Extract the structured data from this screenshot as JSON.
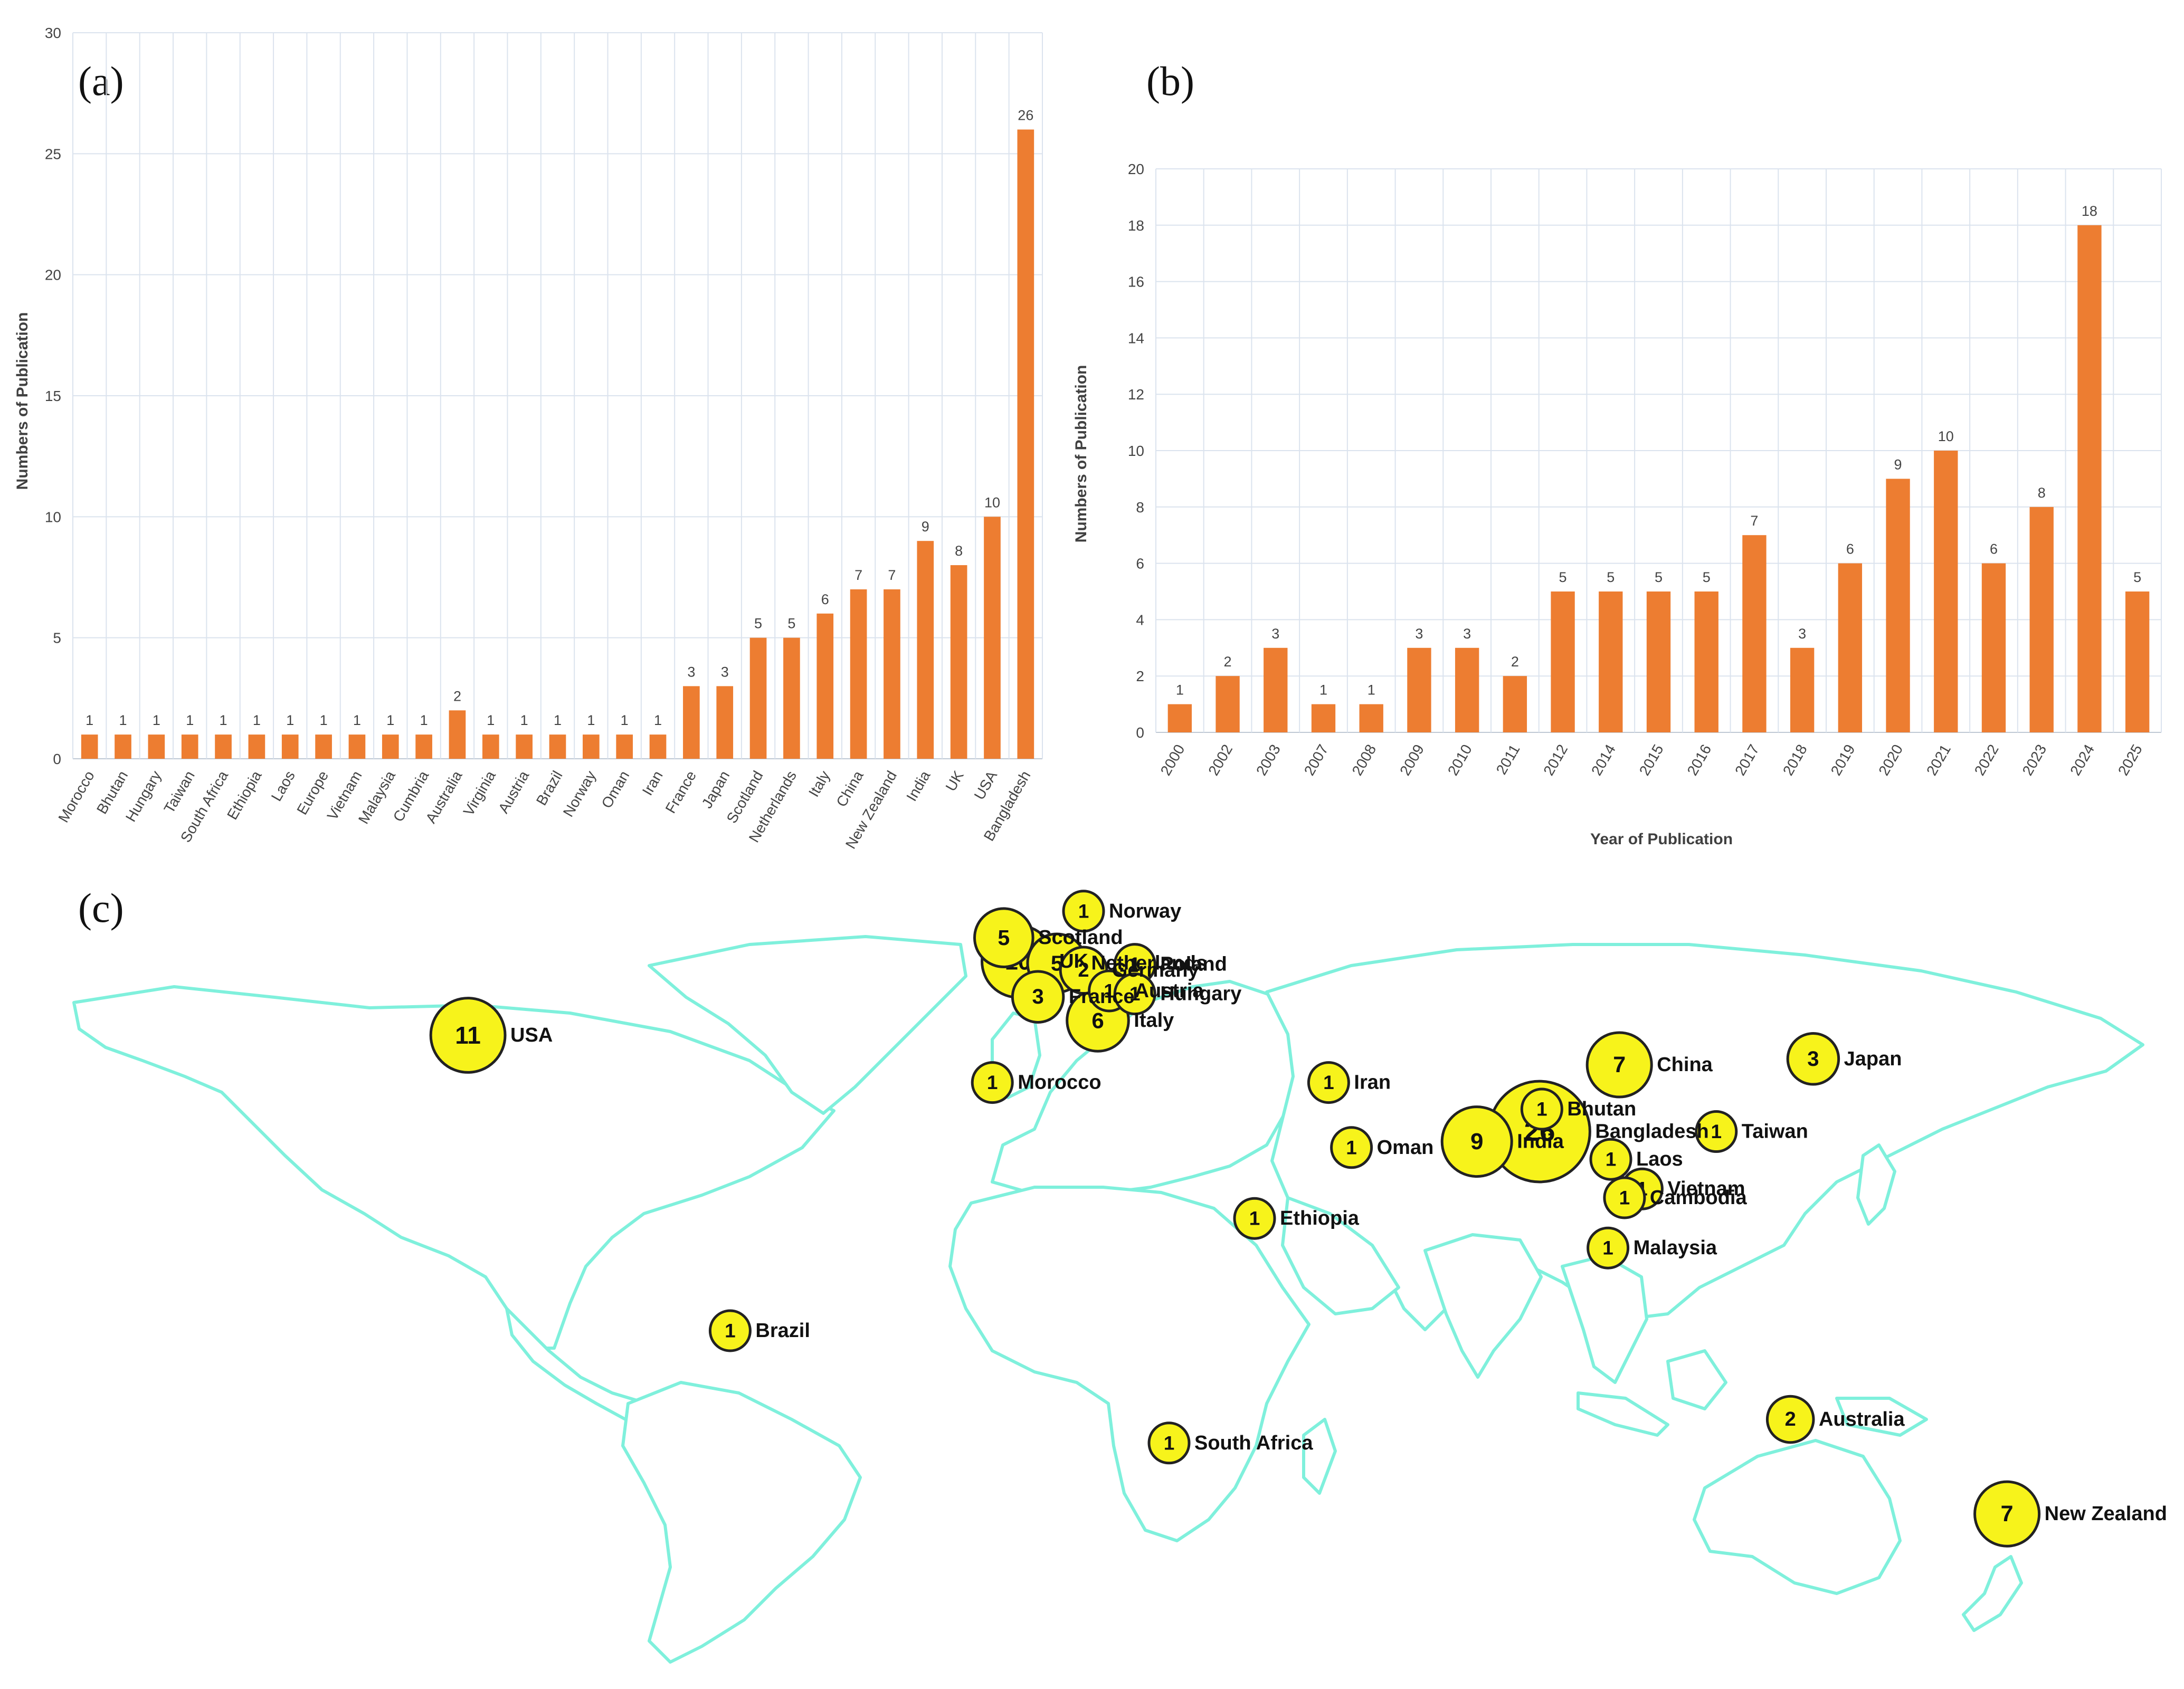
{
  "chart_data": [
    {
      "panel": "(a)",
      "type": "bar",
      "ylabel": "Numbers of Publication",
      "xlabel": "",
      "ylim": [
        0,
        30
      ],
      "yticks": [
        0,
        5,
        10,
        15,
        20,
        25,
        30
      ],
      "grid": true,
      "bar_color": "#ed7d31",
      "categories": [
        "Morocco",
        "Bhutan",
        "Hungary",
        "Taiwan",
        "South Africa",
        "Ethiopia",
        "Laos",
        "Europe",
        "Vietnam",
        "Malaysia",
        "Cumbria",
        "Australia",
        "Virginia",
        "Austria",
        "Brazil",
        "Norway",
        "Oman",
        "Iran",
        "France",
        "Japan",
        "Scotland",
        "Netherlands",
        "Italy",
        "China",
        "New Zealand",
        "India",
        "UK",
        "USA",
        "Bangladesh"
      ],
      "values": [
        1,
        1,
        1,
        1,
        1,
        1,
        1,
        1,
        1,
        1,
        1,
        2,
        1,
        1,
        1,
        1,
        1,
        1,
        3,
        3,
        5,
        5,
        6,
        7,
        7,
        9,
        8,
        10,
        26
      ]
    },
    {
      "panel": "(b)",
      "type": "bar",
      "ylabel": "Numbers of Publication",
      "xlabel": "Year of Publication",
      "ylim": [
        0,
        20
      ],
      "yticks": [
        0,
        2,
        4,
        6,
        8,
        10,
        12,
        14,
        16,
        18,
        20
      ],
      "grid": true,
      "bar_color": "#ed7d31",
      "categories": [
        "2000",
        "2002",
        "2003",
        "2007",
        "2008",
        "2009",
        "2010",
        "2011",
        "2012",
        "2014",
        "2015",
        "2016",
        "2017",
        "2018",
        "2019",
        "2020",
        "2021",
        "2022",
        "2023",
        "2024",
        "2025"
      ],
      "values": [
        1,
        2,
        3,
        1,
        1,
        3,
        3,
        2,
        5,
        5,
        5,
        5,
        7,
        3,
        6,
        9,
        10,
        6,
        8,
        18,
        5
      ]
    },
    {
      "panel": "(c)",
      "type": "bubble-map",
      "land_color": "#7ff0dc",
      "bubble_color": "#f7f31b",
      "points": [
        {
          "country": "USA",
          "value": 11,
          "lon": -98,
          "lat": 40
        },
        {
          "country": "Scotland",
          "value": 5,
          "lon": -4,
          "lat": 56.5
        },
        {
          "country": "UK",
          "value": 10,
          "lon": -1.5,
          "lat": 52.5
        },
        {
          "country": "Netherlands",
          "value": 5,
          "lon": 5.3,
          "lat": 52.2
        },
        {
          "country": "Germany",
          "value": 2,
          "lon": 10,
          "lat": 51
        },
        {
          "country": "Norway",
          "value": 1,
          "lon": 10,
          "lat": 61
        },
        {
          "country": "Poland",
          "value": 1,
          "lon": 19,
          "lat": 52
        },
        {
          "country": "Austria",
          "value": 1,
          "lon": 14.5,
          "lat": 47.5
        },
        {
          "country": "Hungary",
          "value": 1,
          "lon": 19,
          "lat": 47
        },
        {
          "country": "France",
          "value": 3,
          "lon": 2,
          "lat": 46.5
        },
        {
          "country": "Italy",
          "value": 6,
          "lon": 12.5,
          "lat": 42.5
        },
        {
          "country": "Morocco",
          "value": 1,
          "lon": -6,
          "lat": 32
        },
        {
          "country": "Iran",
          "value": 1,
          "lon": 53,
          "lat": 32
        },
        {
          "country": "Oman",
          "value": 1,
          "lon": 57,
          "lat": 21
        },
        {
          "country": "Ethiopia",
          "value": 1,
          "lon": 40,
          "lat": 9
        },
        {
          "country": "South Africa",
          "value": 1,
          "lon": 25,
          "lat": -29
        },
        {
          "country": "Brazil",
          "value": 1,
          "lon": -52,
          "lat": -10
        },
        {
          "country": "India",
          "value": 9,
          "lon": 79,
          "lat": 22
        },
        {
          "country": "Bangladesh",
          "value": 26,
          "lon": 90,
          "lat": 23.7
        },
        {
          "country": "Bhutan",
          "value": 1,
          "lon": 90.4,
          "lat": 27.5
        },
        {
          "country": "China",
          "value": 7,
          "lon": 104,
          "lat": 35
        },
        {
          "country": "Japan",
          "value": 3,
          "lon": 138,
          "lat": 36
        },
        {
          "country": "Taiwan",
          "value": 1,
          "lon": 121,
          "lat": 23.7
        },
        {
          "country": "Laos",
          "value": 1,
          "lon": 102.5,
          "lat": 19
        },
        {
          "country": "Vietnam",
          "value": 1,
          "lon": 108,
          "lat": 14
        },
        {
          "country": "Cambodia",
          "value": 1,
          "lon": 104.9,
          "lat": 12.5
        },
        {
          "country": "Malaysia",
          "value": 1,
          "lon": 102,
          "lat": 4
        },
        {
          "country": "Australia",
          "value": 2,
          "lon": 134,
          "lat": -25
        },
        {
          "country": "New Zealand",
          "value": 7,
          "lon": 172,
          "lat": -41
        }
      ]
    }
  ]
}
